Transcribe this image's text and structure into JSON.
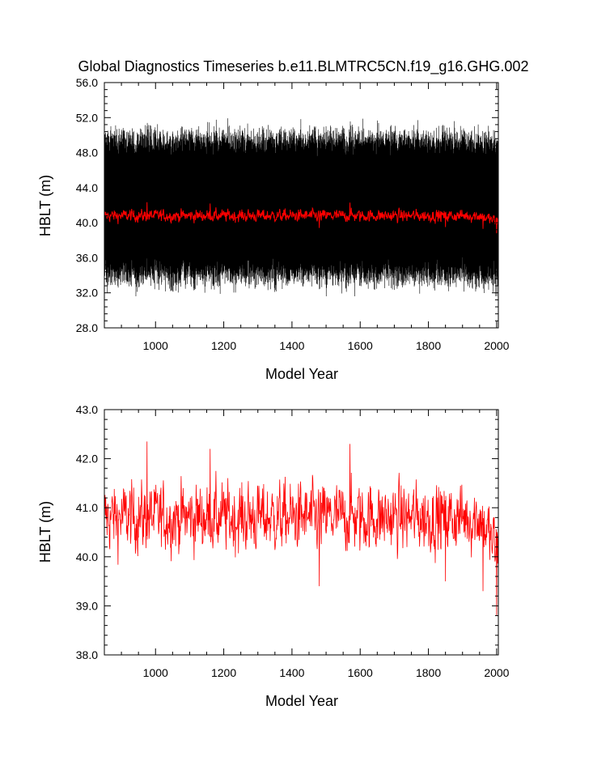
{
  "chart_data": [
    {
      "type": "line",
      "title": "Global Diagnostics Timeseries b.e11.BLMTRC5CN.f19_g16.GHG.002",
      "xlabel": "Model Year",
      "ylabel": "HBLT (m)",
      "xlim": [
        850,
        2005
      ],
      "ylim": [
        28.0,
        56.0
      ],
      "xticks": [
        "1000",
        "1200",
        "1400",
        "1600",
        "1800",
        "2000"
      ],
      "yticks": [
        "28.0",
        "32.0",
        "36.0",
        "40.0",
        "44.0",
        "48.0",
        "52.0",
        "56.0"
      ],
      "series": [
        {
          "color": "#000000",
          "description_values": "monthly values oscillating roughly between 33 and 50",
          "x_start": 850,
          "x_end": 2005,
          "seasonal_min_approx": 33.5,
          "seasonal_max_approx": 50.0,
          "extreme_min": 31.6,
          "extreme_max": 53.3
        },
        {
          "color": "#ff0000",
          "x_start": 850,
          "x_end": 2005,
          "mean_approx": 40.8
        }
      ]
    },
    {
      "type": "line",
      "title": "",
      "xlabel": "Model Year",
      "ylabel": "HBLT (m)",
      "xlim": [
        850,
        2005
      ],
      "ylim": [
        38.0,
        43.0
      ],
      "xticks": [
        "1000",
        "1200",
        "1400",
        "1600",
        "1800",
        "2000"
      ],
      "yticks": [
        "38.0",
        "39.0",
        "40.0",
        "41.0",
        "42.0",
        "43.0"
      ],
      "series": [
        {
          "color": "#ff0000",
          "x_start": 850,
          "x_end": 2005,
          "mean_approx": 40.8,
          "min_approx": 38.8,
          "max_approx": 42.35,
          "keypoints": [
            [
              850,
              40.9
            ],
            [
              975,
              42.35
            ],
            [
              1160,
              42.2
            ],
            [
              1480,
              39.4
            ],
            [
              1570,
              42.3
            ],
            [
              1850,
              39.5
            ],
            [
              1960,
              39.3
            ],
            [
              2000,
              38.8
            ]
          ]
        }
      ]
    }
  ]
}
